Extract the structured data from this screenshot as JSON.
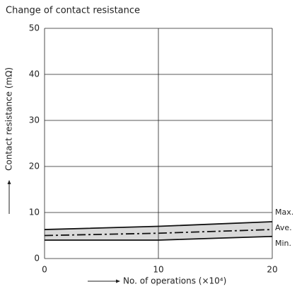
{
  "chart_data": {
    "type": "line",
    "title": "Change of contact resistance",
    "x_label": "No. of operations (×10⁴)",
    "y_label": "Contact resistance (mΩ)",
    "x": [
      0,
      10,
      20
    ],
    "series": [
      {
        "name": "Max.",
        "color": "#111111",
        "values": [
          6.3,
          7.0,
          8.0
        ]
      },
      {
        "name": "Ave.",
        "color": "#111111",
        "style": "dashdot",
        "values": [
          5.0,
          5.5,
          6.3
        ]
      },
      {
        "name": "Min.",
        "color": "#111111",
        "values": [
          4.0,
          4.0,
          4.8
        ]
      }
    ],
    "band_color": "#d9d9d9",
    "xlim": [
      0,
      20
    ],
    "xticks": [
      0,
      10,
      20
    ],
    "ylim": [
      0,
      50
    ],
    "yticks": [
      0,
      10,
      20,
      30,
      40,
      50
    ],
    "grid": true
  }
}
